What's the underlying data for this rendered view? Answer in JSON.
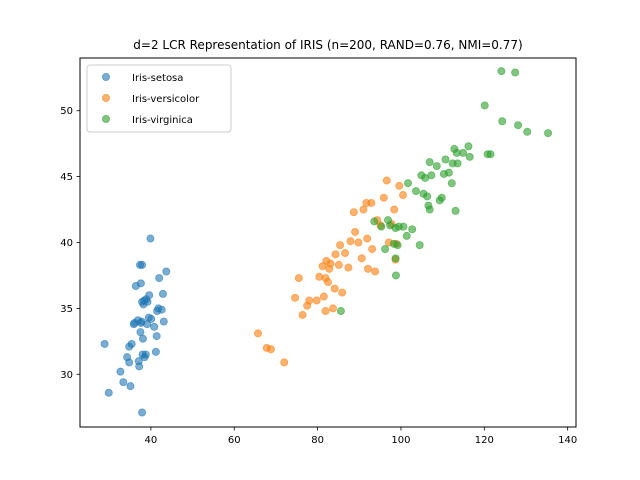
{
  "chart_data": {
    "type": "scatter",
    "title": "d=2 LCR Representation of IRIS (n=200, RAND=0.76, NMI=0.77)",
    "xlabel": "",
    "ylabel": "",
    "xlim": [
      23,
      142
    ],
    "ylim": [
      26,
      54
    ],
    "xticks": [
      40,
      60,
      80,
      100,
      120,
      140
    ],
    "yticks": [
      30,
      35,
      40,
      45,
      50
    ],
    "grid": false,
    "legend_position": "top-left",
    "series": [
      {
        "name": "Iris-setosa",
        "color": "#1f77b4",
        "points": [
          [
            28.9,
            32.3
          ],
          [
            29.9,
            28.6
          ],
          [
            32.7,
            30.2
          ],
          [
            33.4,
            29.4
          ],
          [
            34.3,
            31.3
          ],
          [
            34.8,
            30.9
          ],
          [
            35.1,
            29.1
          ],
          [
            34.8,
            32.1
          ],
          [
            35.4,
            32.3
          ],
          [
            36.1,
            33.9
          ],
          [
            35.9,
            33.8
          ],
          [
            36.4,
            36.7
          ],
          [
            36.9,
            34.1
          ],
          [
            37.2,
            30.6
          ],
          [
            37.1,
            31.0
          ],
          [
            37.5,
            33.2
          ],
          [
            37.6,
            33.9
          ],
          [
            37.8,
            34.0
          ],
          [
            37.9,
            35.5
          ],
          [
            38.2,
            35.3
          ],
          [
            38.4,
            35.6
          ],
          [
            38.1,
            32.7
          ],
          [
            37.6,
            36.9
          ],
          [
            38.0,
            31.5
          ],
          [
            38.8,
            31.5
          ],
          [
            38.5,
            31.3
          ],
          [
            37.4,
            38.3
          ],
          [
            37.9,
            38.3
          ],
          [
            38.9,
            35.7
          ],
          [
            39.1,
            33.8
          ],
          [
            39.2,
            35.5
          ],
          [
            39.5,
            34.3
          ],
          [
            39.6,
            36.0
          ],
          [
            40.1,
            34.2
          ],
          [
            39.9,
            40.3
          ],
          [
            40.8,
            33.6
          ],
          [
            41.2,
            31.7
          ],
          [
            41.5,
            34.8
          ],
          [
            41.4,
            32.9
          ],
          [
            41.8,
            35.0
          ],
          [
            42.0,
            37.3
          ],
          [
            42.6,
            34.9
          ],
          [
            42.9,
            36.1
          ],
          [
            43.1,
            34.0
          ],
          [
            43.7,
            37.8
          ],
          [
            37.9,
            27.1
          ]
        ]
      },
      {
        "name": "Iris-versicolor",
        "color": "#ff7f0e",
        "points": [
          [
            65.7,
            33.1
          ],
          [
            67.8,
            32.0
          ],
          [
            68.8,
            31.9
          ],
          [
            72.0,
            30.9
          ],
          [
            74.6,
            35.8
          ],
          [
            75.5,
            37.3
          ],
          [
            76.4,
            34.5
          ],
          [
            77.5,
            35.2
          ],
          [
            78.0,
            35.6
          ],
          [
            79.8,
            35.6
          ],
          [
            80.4,
            37.4
          ],
          [
            81.2,
            38.2
          ],
          [
            81.5,
            35.9
          ],
          [
            81.9,
            37.3
          ],
          [
            82.1,
            38.6
          ],
          [
            82.5,
            37.0
          ],
          [
            82.8,
            38.0
          ],
          [
            83.1,
            38.4
          ],
          [
            81.9,
            34.8
          ],
          [
            83.7,
            35.0
          ],
          [
            84.1,
            36.5
          ],
          [
            84.3,
            39.1
          ],
          [
            85.1,
            38.3
          ],
          [
            85.4,
            39.8
          ],
          [
            85.9,
            36.2
          ],
          [
            86.6,
            39.2
          ],
          [
            87.4,
            38.1
          ],
          [
            87.9,
            40.1
          ],
          [
            88.7,
            42.3
          ],
          [
            89.0,
            40.8
          ],
          [
            89.8,
            40.0
          ],
          [
            90.6,
            38.8
          ],
          [
            91.0,
            42.5
          ],
          [
            91.7,
            43.0
          ],
          [
            91.9,
            40.3
          ],
          [
            92.1,
            38.0
          ],
          [
            93.1,
            39.5
          ],
          [
            92.9,
            43.0
          ],
          [
            93.8,
            37.8
          ],
          [
            94.3,
            41.7
          ],
          [
            95.1,
            41.3
          ],
          [
            95.9,
            43.4
          ],
          [
            96.6,
            44.7
          ],
          [
            97.1,
            40.0
          ],
          [
            97.8,
            41.4
          ],
          [
            98.4,
            42.5
          ],
          [
            98.9,
            39.9
          ],
          [
            99.6,
            44.3
          ],
          [
            100.5,
            43.6
          ],
          [
            98.7,
            38.7
          ]
        ]
      },
      {
        "name": "Iris-virginica",
        "color": "#2ca02c",
        "points": [
          [
            85.6,
            34.8
          ],
          [
            93.6,
            41.6
          ],
          [
            95.3,
            41.2
          ],
          [
            96.2,
            39.5
          ],
          [
            96.9,
            41.7
          ],
          [
            97.4,
            41.3
          ],
          [
            98.3,
            39.9
          ],
          [
            98.7,
            41.1
          ],
          [
            99.2,
            39.8
          ],
          [
            99.5,
            41.2
          ],
          [
            98.8,
            37.5
          ],
          [
            98.7,
            38.8
          ],
          [
            100.6,
            41.2
          ],
          [
            101.4,
            40.5
          ],
          [
            101.7,
            44.5
          ],
          [
            102.7,
            41.0
          ],
          [
            103.6,
            43.9
          ],
          [
            104.5,
            39.8
          ],
          [
            104.9,
            45.1
          ],
          [
            105.4,
            43.7
          ],
          [
            105.8,
            44.9
          ],
          [
            106.3,
            43.5
          ],
          [
            106.6,
            42.8
          ],
          [
            106.9,
            46.1
          ],
          [
            107.3,
            45.1
          ],
          [
            106.9,
            42.5
          ],
          [
            108.6,
            45.8
          ],
          [
            109.3,
            43.2
          ],
          [
            109.8,
            43.4
          ],
          [
            110.3,
            45.2
          ],
          [
            110.7,
            46.3
          ],
          [
            111.5,
            45.3
          ],
          [
            112.2,
            44.5
          ],
          [
            112.4,
            46.0
          ],
          [
            112.8,
            47.1
          ],
          [
            113.4,
            46.8
          ],
          [
            113.6,
            46.0
          ],
          [
            113.1,
            42.4
          ],
          [
            114.9,
            46.8
          ],
          [
            116.2,
            47.3
          ],
          [
            116.5,
            46.5
          ],
          [
            120.1,
            50.4
          ],
          [
            120.8,
            46.7
          ],
          [
            121.5,
            46.7
          ],
          [
            124.1,
            53.0
          ],
          [
            124.3,
            49.2
          ],
          [
            127.4,
            52.9
          ],
          [
            128.1,
            48.9
          ],
          [
            130.3,
            48.4
          ],
          [
            135.3,
            48.3
          ]
        ]
      }
    ]
  }
}
